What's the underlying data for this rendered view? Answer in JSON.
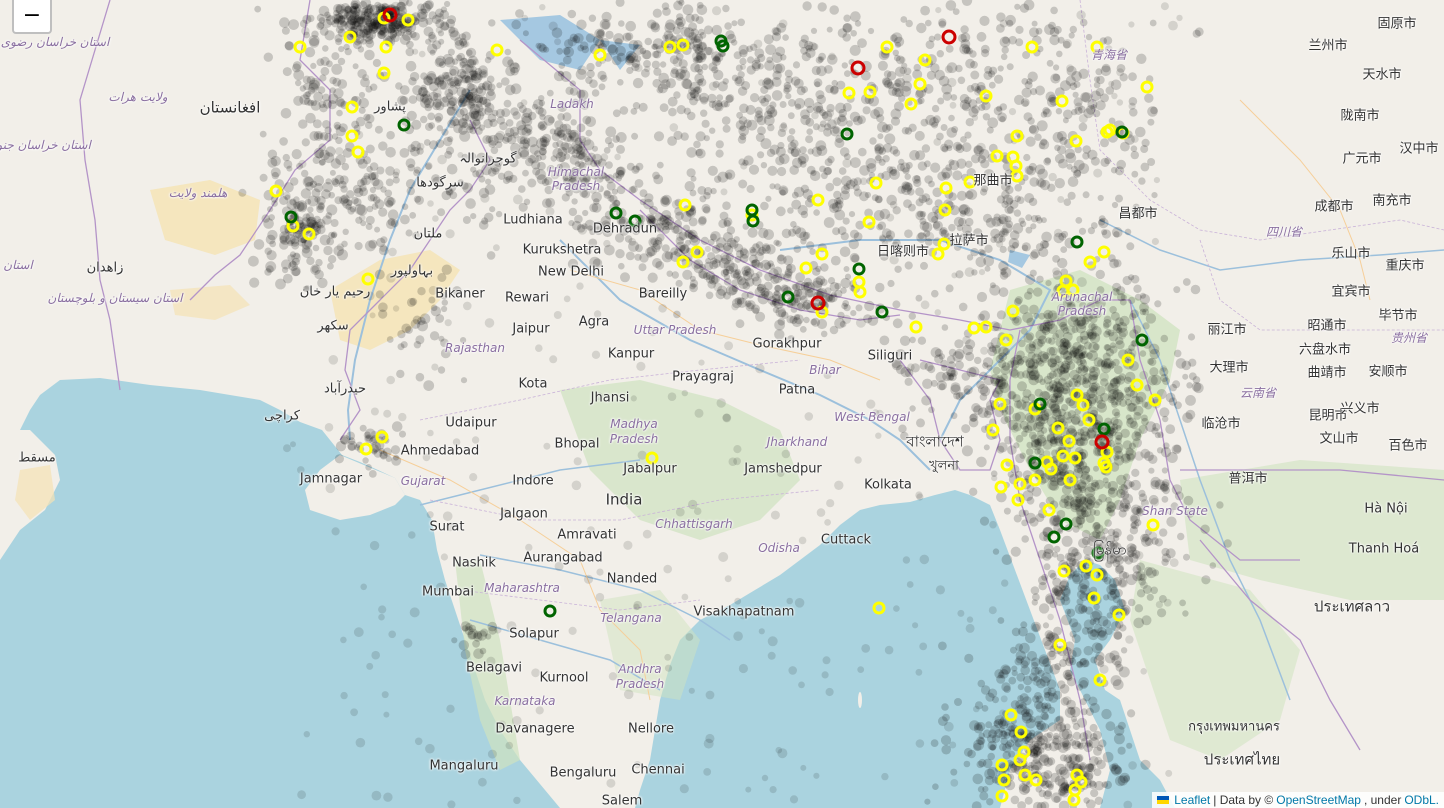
{
  "map": {
    "colors": {
      "water": "#aad3df",
      "land": "#f2efe9",
      "desert": "#f5e3b3",
      "forest": "#cfe3bf",
      "highland": "#f6f1e7",
      "lake": "#a5c8e1",
      "border": "#b494c8",
      "river": "#9cc0dc",
      "marker_black": "#000000",
      "marker_yellow": "#ffff00",
      "marker_green": "#006400",
      "marker_red": "#cc0000"
    },
    "labels": [
      {
        "name": "label-kabul-region",
        "text": "افغانستان",
        "kind": "country"
      },
      {
        "name": "label-zahedan",
        "text": "زاهدان",
        "kind": "city"
      },
      {
        "name": "label-karachi",
        "text": "کراچی",
        "kind": "city"
      },
      {
        "name": "label-hyderabad-pk",
        "text": "حیدرآباد",
        "kind": "city"
      },
      {
        "name": "label-sukkur",
        "text": "سکھر",
        "kind": "city"
      },
      {
        "name": "label-bahawalpur",
        "text": "بہاولپور",
        "kind": "city"
      },
      {
        "name": "label-multan",
        "text": "ملتان",
        "kind": "city"
      },
      {
        "name": "label-peshawar",
        "text": "پشاور",
        "kind": "city"
      },
      {
        "name": "label-sargodha",
        "text": "سرگودھا",
        "kind": "city"
      },
      {
        "name": "label-gujranwala",
        "text": "گوجرانوالہ",
        "kind": "city"
      },
      {
        "name": "label-rahim-yar-khan",
        "text": "رحیم یار خان",
        "kind": "city"
      },
      {
        "name": "label-ludhiana",
        "text": "Ludhiana",
        "kind": "city"
      },
      {
        "name": "label-kurukshetra",
        "text": "Kurukshetra",
        "kind": "city"
      },
      {
        "name": "label-new-delhi",
        "text": "New Delhi",
        "kind": "city"
      },
      {
        "name": "label-dehradun",
        "text": "Dehradun",
        "kind": "city"
      },
      {
        "name": "label-bikaner",
        "text": "Bikaner",
        "kind": "city"
      },
      {
        "name": "label-rewari",
        "text": "Rewari",
        "kind": "city"
      },
      {
        "name": "label-jaipur",
        "text": "Jaipur",
        "kind": "city"
      },
      {
        "name": "label-agra",
        "text": "Agra",
        "kind": "city"
      },
      {
        "name": "label-bareilly",
        "text": "Bareilly",
        "kind": "city"
      },
      {
        "name": "label-kanpur",
        "text": "Kanpur",
        "kind": "city"
      },
      {
        "name": "label-gorakhpur",
        "text": "Gorakhpur",
        "kind": "city"
      },
      {
        "name": "label-prayagraj",
        "text": "Prayagraj",
        "kind": "city"
      },
      {
        "name": "label-patna",
        "text": "Patna",
        "kind": "city"
      },
      {
        "name": "label-siliguri",
        "text": "Siliguri",
        "kind": "city"
      },
      {
        "name": "label-kota",
        "text": "Kota",
        "kind": "city"
      },
      {
        "name": "label-jhansi",
        "text": "Jhansi",
        "kind": "city"
      },
      {
        "name": "label-udaipur",
        "text": "Udaipur",
        "kind": "city"
      },
      {
        "name": "label-bhopal",
        "text": "Bhopal",
        "kind": "city"
      },
      {
        "name": "label-ahmedabad",
        "text": "Ahmedabad",
        "kind": "city"
      },
      {
        "name": "label-jamnagar",
        "text": "Jamnagar",
        "kind": "city"
      },
      {
        "name": "label-indore",
        "text": "Indore",
        "kind": "city"
      },
      {
        "name": "label-jabalpur",
        "text": "Jabalpur",
        "kind": "city"
      },
      {
        "name": "label-jamshedpur",
        "text": "Jamshedpur",
        "kind": "city"
      },
      {
        "name": "label-kolkata",
        "text": "Kolkata",
        "kind": "city"
      },
      {
        "name": "label-india",
        "text": "India",
        "kind": "country"
      },
      {
        "name": "label-surat",
        "text": "Surat",
        "kind": "city"
      },
      {
        "name": "label-jalgaon",
        "text": "Jalgaon",
        "kind": "city"
      },
      {
        "name": "label-amravati",
        "text": "Amravati",
        "kind": "city"
      },
      {
        "name": "label-nashik",
        "text": "Nashik",
        "kind": "city"
      },
      {
        "name": "label-aurangabad",
        "text": "Aurangabad",
        "kind": "city"
      },
      {
        "name": "label-nanded",
        "text": "Nanded",
        "kind": "city"
      },
      {
        "name": "label-cuttack",
        "text": "Cuttack",
        "kind": "city"
      },
      {
        "name": "label-mumbai",
        "text": "Mumbai",
        "kind": "city"
      },
      {
        "name": "label-solapur",
        "text": "Solapur",
        "kind": "city"
      },
      {
        "name": "label-visakhapatnam",
        "text": "Visakhapatnam",
        "kind": "city"
      },
      {
        "name": "label-belagavi",
        "text": "Belagavi",
        "kind": "city"
      },
      {
        "name": "label-kurnool",
        "text": "Kurnool",
        "kind": "city"
      },
      {
        "name": "label-davanagere",
        "text": "Davanagere",
        "kind": "city"
      },
      {
        "name": "label-nellore",
        "text": "Nellore",
        "kind": "city"
      },
      {
        "name": "label-mangaluru",
        "text": "Mangaluru",
        "kind": "city"
      },
      {
        "name": "label-bengaluru",
        "text": "Bengaluru",
        "kind": "city"
      },
      {
        "name": "label-chennai",
        "text": "Chennai",
        "kind": "city"
      },
      {
        "name": "label-salem",
        "text": "Salem",
        "kind": "city"
      },
      {
        "name": "label-rajasthan",
        "text": "Rajasthan",
        "kind": "region"
      },
      {
        "name": "label-gujarat",
        "text": "Gujarat",
        "kind": "region"
      },
      {
        "name": "label-uttar-pradesh",
        "text": "Uttar Pradesh",
        "kind": "region"
      },
      {
        "name": "label-madhya-pradesh-1",
        "text": "Madhya",
        "kind": "region"
      },
      {
        "name": "label-madhya-pradesh-2",
        "text": "Pradesh",
        "kind": "region"
      },
      {
        "name": "label-bihar",
        "text": "Bihar",
        "kind": "region"
      },
      {
        "name": "label-jharkhand",
        "text": "Jharkhand",
        "kind": "region"
      },
      {
        "name": "label-west-bengal",
        "text": "West Bengal",
        "kind": "region"
      },
      {
        "name": "label-chhattisgarh",
        "text": "Chhattisgarh",
        "kind": "region"
      },
      {
        "name": "label-odisha",
        "text": "Odisha",
        "kind": "region"
      },
      {
        "name": "label-maharashtra",
        "text": "Maharashtra",
        "kind": "region"
      },
      {
        "name": "label-telangana",
        "text": "Telangana",
        "kind": "region"
      },
      {
        "name": "label-andhra-1",
        "text": "Andhra",
        "kind": "region"
      },
      {
        "name": "label-andhra-2",
        "text": "Pradesh",
        "kind": "region"
      },
      {
        "name": "label-karnataka",
        "text": "Karnataka",
        "kind": "region"
      },
      {
        "name": "label-himachal-1",
        "text": "Himachal",
        "kind": "region"
      },
      {
        "name": "label-himachal-2",
        "text": "Pradesh",
        "kind": "region"
      },
      {
        "name": "label-ladakh",
        "text": "Ladakh",
        "kind": "region"
      },
      {
        "name": "label-arunachal-1",
        "text": "Arunachal",
        "kind": "region"
      },
      {
        "name": "label-arunachal-2",
        "text": "Pradesh",
        "kind": "region"
      },
      {
        "name": "label-shan-state",
        "text": "Shan State",
        "kind": "region"
      },
      {
        "name": "label-muscat",
        "text": "مسقط",
        "kind": "city"
      },
      {
        "name": "label-khulna",
        "text": "খুলনা",
        "kind": "city"
      },
      {
        "name": "label-bangladesh",
        "text": "বাংলাদেশ",
        "kind": "country"
      },
      {
        "name": "label-lhasa",
        "text": "拉萨市",
        "kind": "city"
      },
      {
        "name": "label-shigatse",
        "text": "日喀则市",
        "kind": "city"
      },
      {
        "name": "label-nagqu",
        "text": "那曲市",
        "kind": "city"
      },
      {
        "name": "label-qamdo",
        "text": "昌都市",
        "kind": "city"
      },
      {
        "name": "label-lanzhou",
        "text": "兰州市",
        "kind": "city"
      },
      {
        "name": "label-tianshui",
        "text": "天水市",
        "kind": "city"
      },
      {
        "name": "label-longnan",
        "text": "陇南市",
        "kind": "city"
      },
      {
        "name": "label-guangyuan",
        "text": "广元市",
        "kind": "city"
      },
      {
        "name": "label-hanzhong",
        "text": "汉中市",
        "kind": "city"
      },
      {
        "name": "label-chengdu",
        "text": "成都市",
        "kind": "city"
      },
      {
        "name": "label-nanchong",
        "text": "南充市",
        "kind": "city"
      },
      {
        "name": "label-sichuan",
        "text": "四川省",
        "kind": "region"
      },
      {
        "name": "label-leshan",
        "text": "乐山市",
        "kind": "city"
      },
      {
        "name": "label-chongqing",
        "text": "重庆市",
        "kind": "city"
      },
      {
        "name": "label-yibin",
        "text": "宜宾市",
        "kind": "city"
      },
      {
        "name": "label-bijie",
        "text": "毕节市",
        "kind": "city"
      },
      {
        "name": "label-lijiang",
        "text": "丽江市",
        "kind": "city"
      },
      {
        "name": "label-zhaotong",
        "text": "昭通市",
        "kind": "city"
      },
      {
        "name": "label-liupanshui",
        "text": "六盘水市",
        "kind": "city"
      },
      {
        "name": "label-anshun",
        "text": "安顺市",
        "kind": "city"
      },
      {
        "name": "label-guizhou",
        "text": "贵州省",
        "kind": "region"
      },
      {
        "name": "label-dali",
        "text": "大理市",
        "kind": "city"
      },
      {
        "name": "label-qujing",
        "text": "曲靖市",
        "kind": "city"
      },
      {
        "name": "label-yunnan",
        "text": "云南省",
        "kind": "region"
      },
      {
        "name": "label-lincang",
        "text": "临沧市",
        "kind": "city"
      },
      {
        "name": "label-kunming",
        "text": "昆明市",
        "kind": "city"
      },
      {
        "name": "label-xingyi",
        "text": "兴义市",
        "kind": "city"
      },
      {
        "name": "label-wenshan",
        "text": "文山市",
        "kind": "city"
      },
      {
        "name": "label-baise",
        "text": "百色市",
        "kind": "city"
      },
      {
        "name": "label-puer",
        "text": "普洱市",
        "kind": "city"
      },
      {
        "name": "label-guyuan",
        "text": "固原市",
        "kind": "city"
      },
      {
        "name": "label-qinghai",
        "text": "青海省",
        "kind": "region"
      },
      {
        "name": "label-hanoi",
        "text": "Hà Nội",
        "kind": "city"
      },
      {
        "name": "label-thanh-hoa",
        "text": "Thanh Hoá",
        "kind": "city"
      },
      {
        "name": "label-laos",
        "text": "ประเทศลาว",
        "kind": "country"
      },
      {
        "name": "label-bangkok",
        "text": "กรุงเทพมหานคร",
        "kind": "city"
      },
      {
        "name": "label-thailand",
        "text": "ประเทศไทย",
        "kind": "country"
      },
      {
        "name": "label-myanmar",
        "text": "မြန်မာ",
        "kind": "country"
      },
      {
        "name": "label-zahedan-prov",
        "text": "استان سیستان و بلوچستان",
        "kind": "region"
      },
      {
        "name": "label-khorasan",
        "text": "استان خراسان جنوبی",
        "kind": "region"
      },
      {
        "name": "label-razavi",
        "text": "استان خراسان رضوی",
        "kind": "region"
      },
      {
        "name": "label-herat",
        "text": "ولایت هرات",
        "kind": "region"
      },
      {
        "name": "label-helmand",
        "text": "هلمند ولایت",
        "kind": "region"
      },
      {
        "name": "label-kerman",
        "text": "استان",
        "kind": "region"
      }
    ],
    "markers": {
      "yellow_count": 120,
      "green_count": 22,
      "red_count": 5
    }
  },
  "controls": {
    "zoom_out_label": "−"
  },
  "attribution": {
    "leaflet": "Leaflet",
    "sep": "| Data by ©",
    "osm": "OpenStreetMap",
    "under": ", under",
    "odbl": "ODbL."
  }
}
